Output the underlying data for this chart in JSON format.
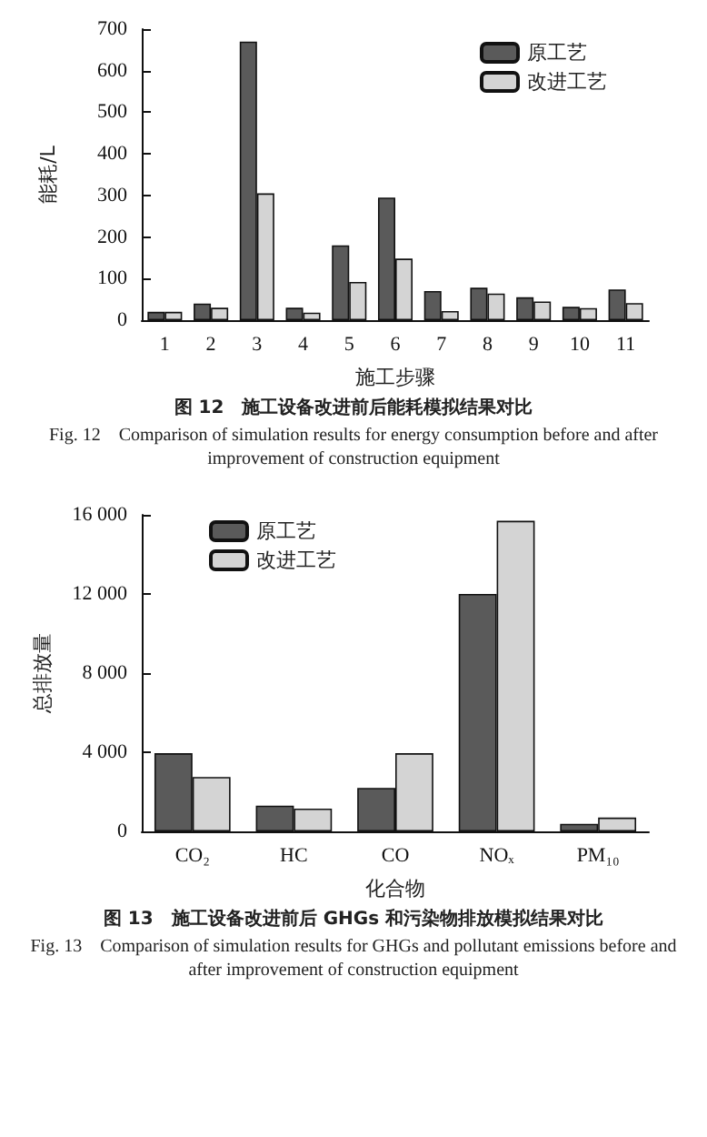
{
  "chart_data": [
    {
      "type": "bar",
      "xlabel": "施工步骤",
      "ylabel": "能耗/L",
      "categories": [
        "1",
        "2",
        "3",
        "4",
        "5",
        "6",
        "7",
        "8",
        "9",
        "10",
        "11"
      ],
      "series": [
        {
          "name": "原工艺",
          "color": "#5a5a5a",
          "values": [
            20,
            40,
            670,
            30,
            180,
            295,
            70,
            78,
            55,
            32,
            74
          ]
        },
        {
          "name": "改进工艺",
          "color": "#d4d4d4",
          "values": [
            20,
            30,
            305,
            18,
            92,
            148,
            22,
            64,
            45,
            29,
            41
          ]
        }
      ],
      "ylim": [
        0,
        700
      ],
      "yticks": [
        0,
        100,
        200,
        300,
        400,
        500,
        600,
        700
      ],
      "grid": false,
      "legend": "top right",
      "annotations": [
        "图 12　施工设备改进前后能耗模拟结果对比",
        "Fig. 12　Comparison of simulation results for energy consumption before and after improvement of construction equipment"
      ]
    },
    {
      "type": "bar",
      "xlabel": "化合物",
      "ylabel": "总排放量",
      "categories": [
        "CO₂",
        "HC",
        "CO",
        "NOₓ",
        "PM₁₀"
      ],
      "series": [
        {
          "name": "原工艺",
          "color": "#5a5a5a",
          "values": [
            3950,
            1300,
            2200,
            12000,
            380
          ]
        },
        {
          "name": "改进工艺",
          "color": "#d4d4d4",
          "values": [
            2750,
            1150,
            3950,
            15700,
            700
          ]
        }
      ],
      "ylim": [
        0,
        16000
      ],
      "yticks": [
        0,
        {
          "value": 4000,
          "label": "4 000"
        },
        {
          "value": 8000,
          "label": "8 000"
        },
        {
          "value": 12000,
          "label": "12 000"
        },
        {
          "value": 16000,
          "label": "16 000"
        }
      ],
      "grid": false,
      "legend": "top left",
      "annotations": [
        "图 13　施工设备改进前后 GHGs 和污染物排放模拟结果对比",
        "Fig. 13　Comparison of simulation results for GHGs and pollutant emissions before and after improvement of construction equipment"
      ]
    }
  ]
}
